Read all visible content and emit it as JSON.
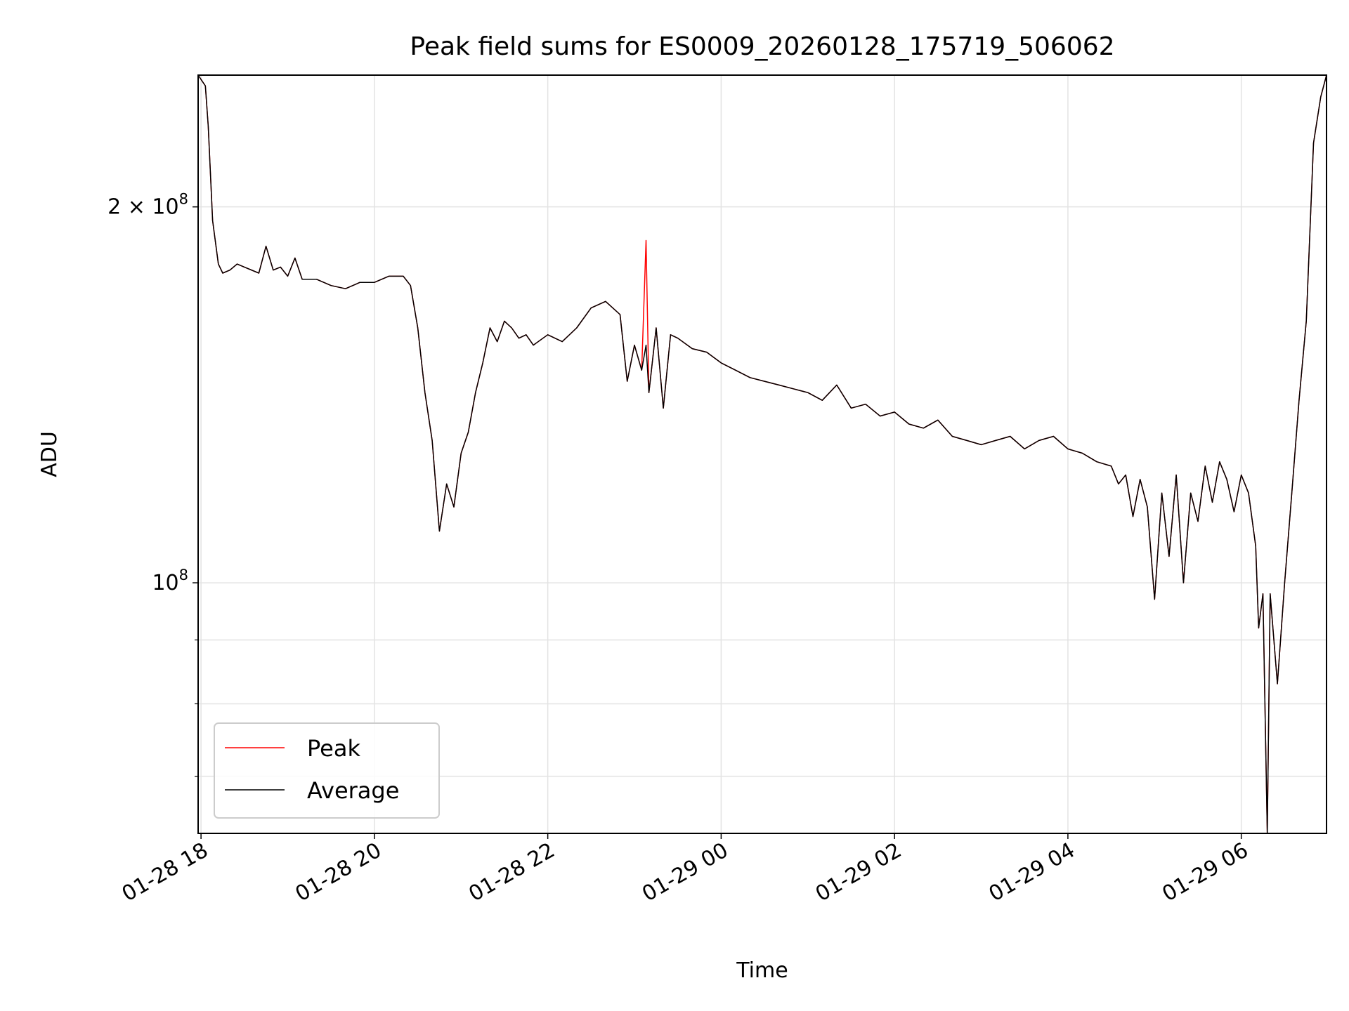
{
  "chart_data": {
    "type": "line",
    "title": "Peak field sums for ES0009_20260128_175719_506062",
    "xlabel": "Time",
    "ylabel": "ADU",
    "yscale": "log",
    "xlim": [
      "01-28 17:58",
      "01-29 06:59"
    ],
    "ylim": [
      63000000.0,
      255000000.0
    ],
    "grid": true,
    "legend_position": "lower-left",
    "x_ticks": [
      "01-28 18",
      "01-28 20",
      "01-28 22",
      "01-29 00",
      "01-29 02",
      "01-29 04",
      "01-29 06"
    ],
    "x_tick_times": [
      "01-28 18:00",
      "01-28 20:00",
      "01-28 22:00",
      "01-29 00:00",
      "01-29 02:00",
      "01-29 04:00",
      "01-29 06:00"
    ],
    "y_ticks": [
      {
        "label_main": "2 × 10",
        "label_exp": "8",
        "value": 200000000.0
      },
      {
        "label_main": "10",
        "label_exp": "8",
        "value": 100000000.0
      }
    ],
    "y_minor_ticks": [
      90000000.0,
      80000000.0,
      70000000.0
    ],
    "x": [
      "01-28 17:58",
      "01-28 18:03",
      "01-28 18:05",
      "01-28 18:08",
      "01-28 18:12",
      "01-28 18:15",
      "01-28 18:20",
      "01-28 18:25",
      "01-28 18:30",
      "01-28 18:40",
      "01-28 18:45",
      "01-28 18:50",
      "01-28 18:55",
      "01-28 19:00",
      "01-28 19:05",
      "01-28 19:10",
      "01-28 19:20",
      "01-28 19:30",
      "01-28 19:40",
      "01-28 19:50",
      "01-28 20:00",
      "01-28 20:10",
      "01-28 20:20",
      "01-28 20:25",
      "01-28 20:30",
      "01-28 20:35",
      "01-28 20:40",
      "01-28 20:45",
      "01-28 20:50",
      "01-28 20:55",
      "01-28 21:00",
      "01-28 21:05",
      "01-28 21:10",
      "01-28 21:15",
      "01-28 21:20",
      "01-28 21:25",
      "01-28 21:30",
      "01-28 21:35",
      "01-28 21:40",
      "01-28 21:45",
      "01-28 21:50",
      "01-28 22:00",
      "01-28 22:10",
      "01-28 22:20",
      "01-28 22:30",
      "01-28 22:40",
      "01-28 22:50",
      "01-28 22:55",
      "01-28 23:00",
      "01-28 23:05",
      "01-28 23:08",
      "01-28 23:10",
      "01-28 23:15",
      "01-28 23:20",
      "01-28 23:25",
      "01-28 23:30",
      "01-28 23:40",
      "01-28 23:50",
      "01-29 00:00",
      "01-29 00:10",
      "01-29 00:20",
      "01-29 00:30",
      "01-29 00:40",
      "01-29 00:50",
      "01-29 01:00",
      "01-29 01:10",
      "01-29 01:20",
      "01-29 01:30",
      "01-29 01:40",
      "01-29 01:50",
      "01-29 02:00",
      "01-29 02:10",
      "01-29 02:20",
      "01-29 02:30",
      "01-29 02:40",
      "01-29 02:50",
      "01-29 03:00",
      "01-29 03:10",
      "01-29 03:20",
      "01-29 03:30",
      "01-29 03:40",
      "01-29 03:50",
      "01-29 04:00",
      "01-29 04:10",
      "01-29 04:20",
      "01-29 04:30",
      "01-29 04:35",
      "01-29 04:40",
      "01-29 04:45",
      "01-29 04:50",
      "01-29 04:55",
      "01-29 05:00",
      "01-29 05:05",
      "01-29 05:10",
      "01-29 05:15",
      "01-29 05:20",
      "01-29 05:25",
      "01-29 05:30",
      "01-29 05:35",
      "01-29 05:40",
      "01-29 05:45",
      "01-29 05:50",
      "01-29 05:55",
      "01-29 06:00",
      "01-29 06:05",
      "01-29 06:10",
      "01-29 06:12",
      "01-29 06:15",
      "01-29 06:18",
      "01-29 06:20",
      "01-29 06:25",
      "01-29 06:30",
      "01-29 06:35",
      "01-29 06:40",
      "01-29 06:45",
      "01-29 06:50",
      "01-29 06:55",
      "01-29 06:59"
    ],
    "series": [
      {
        "name": "Average",
        "color": "#000000",
        "values": [
          255000000.0,
          250000000.0,
          232000000.0,
          195000000.0,
          180000000.0,
          177000000.0,
          178000000.0,
          180000000.0,
          179000000.0,
          177000000.0,
          186000000.0,
          178000000.0,
          179000000.0,
          176000000.0,
          182000000.0,
          175000000.0,
          175000000.0,
          173000000.0,
          172000000.0,
          174000000.0,
          174000000.0,
          176000000.0,
          176000000.0,
          173000000.0,
          160000000.0,
          142000000.0,
          130000000.0,
          110000000.0,
          120000000.0,
          115000000.0,
          127000000.0,
          132000000.0,
          142000000.0,
          150000000.0,
          160000000.0,
          156000000.0,
          162000000.0,
          160000000.0,
          157000000.0,
          158000000.0,
          155000000.0,
          158000000.0,
          156000000.0,
          160000000.0,
          166000000.0,
          168000000.0,
          164000000.0,
          145000000.0,
          155000000.0,
          148000000.0,
          155000000.0,
          142000000.0,
          160000000.0,
          138000000.0,
          158000000.0,
          157000000.0,
          154000000.0,
          153000000.0,
          150000000.0,
          148000000.0,
          146000000.0,
          145000000.0,
          144000000.0,
          143000000.0,
          142000000.0,
          140000000.0,
          144000000.0,
          138000000.0,
          139000000.0,
          136000000.0,
          137000000.0,
          134000000.0,
          133000000.0,
          135000000.0,
          131000000.0,
          130000000.0,
          129000000.0,
          130000000.0,
          131000000.0,
          128000000.0,
          130000000.0,
          131000000.0,
          128000000.0,
          127000000.0,
          125000000.0,
          124000000.0,
          120000000.0,
          122000000.0,
          113000000.0,
          121000000.0,
          115000000.0,
          97000000.0,
          118000000.0,
          105000000.0,
          122000000.0,
          100000000.0,
          118000000.0,
          112000000.0,
          124000000.0,
          116000000.0,
          125000000.0,
          121000000.0,
          114000000.0,
          122000000.0,
          118000000.0,
          107000000.0,
          92000000.0,
          98000000.0,
          63000000.0,
          98000000.0,
          83000000.0,
          100000000.0,
          118000000.0,
          140000000.0,
          162000000.0,
          225000000.0,
          245000000.0,
          255000000.0
        ]
      },
      {
        "name": "Peak",
        "color": "#ff0000",
        "values": [
          255000000.0,
          250000000.0,
          232000000.0,
          195000000.0,
          180000000.0,
          177000000.0,
          178000000.0,
          180000000.0,
          179000000.0,
          177000000.0,
          186000000.0,
          178000000.0,
          179000000.0,
          176000000.0,
          182000000.0,
          175000000.0,
          175000000.0,
          173000000.0,
          172000000.0,
          174000000.0,
          174000000.0,
          176000000.0,
          176000000.0,
          173000000.0,
          160000000.0,
          142000000.0,
          130000000.0,
          110000000.0,
          120000000.0,
          115000000.0,
          127000000.0,
          132000000.0,
          142000000.0,
          150000000.0,
          160000000.0,
          156000000.0,
          162000000.0,
          160000000.0,
          157000000.0,
          158000000.0,
          155000000.0,
          158000000.0,
          156000000.0,
          160000000.0,
          166000000.0,
          168000000.0,
          164000000.0,
          145000000.0,
          155000000.0,
          148000000.0,
          188000000.0,
          142000000.0,
          160000000.0,
          138000000.0,
          158000000.0,
          157000000.0,
          154000000.0,
          153000000.0,
          150000000.0,
          148000000.0,
          146000000.0,
          145000000.0,
          144000000.0,
          143000000.0,
          142000000.0,
          140000000.0,
          144000000.0,
          138000000.0,
          139000000.0,
          136000000.0,
          137000000.0,
          134000000.0,
          133000000.0,
          135000000.0,
          131000000.0,
          130000000.0,
          129000000.0,
          130000000.0,
          131000000.0,
          128000000.0,
          130000000.0,
          131000000.0,
          128000000.0,
          127000000.0,
          125000000.0,
          124000000.0,
          120000000.0,
          122000000.0,
          113000000.0,
          121000000.0,
          115000000.0,
          97000000.0,
          118000000.0,
          105000000.0,
          122000000.0,
          100000000.0,
          118000000.0,
          112000000.0,
          124000000.0,
          116000000.0,
          125000000.0,
          121000000.0,
          114000000.0,
          122000000.0,
          118000000.0,
          107000000.0,
          92000000.0,
          98000000.0,
          63000000.0,
          98000000.0,
          83000000.0,
          100000000.0,
          118000000.0,
          140000000.0,
          162000000.0,
          225000000.0,
          245000000.0,
          255000000.0
        ]
      }
    ],
    "legend": [
      {
        "name": "Peak",
        "color": "#ff0000"
      },
      {
        "name": "Average",
        "color": "#000000"
      }
    ]
  }
}
